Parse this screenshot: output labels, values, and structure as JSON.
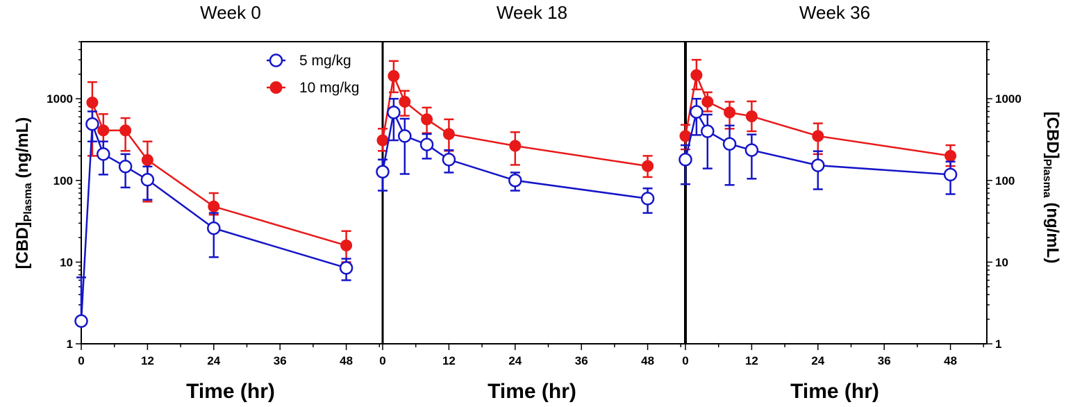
{
  "chart_data": {
    "type": "line",
    "y_scale": "log",
    "ylim": [
      1,
      5000
    ],
    "yticks": [
      1,
      10,
      100,
      1000
    ],
    "ylabel_main": "[CBD]",
    "ylabel_sub": "Plasma",
    "ylabel_units": " (ng/mL)",
    "xlabel": "Time (hr)",
    "xlim": [
      0,
      54
    ],
    "xticks": [
      0,
      12,
      24,
      36,
      48
    ],
    "legend": {
      "position": "top-left",
      "entries": [
        {
          "name": "5 mg/kg",
          "marker": "open-circle",
          "color": "#1515c8"
        },
        {
          "name": "10 mg/kg",
          "marker": "filled-circle",
          "color": "#e81919"
        }
      ]
    },
    "panels": [
      {
        "title": "Week 0",
        "series": [
          {
            "name": "5 mg/kg",
            "x": [
              0,
              2,
              4,
              8,
              12,
              24,
              48
            ],
            "y": [
              1.9,
              490,
              210,
              148,
              102,
              26,
              8.5
            ],
            "err_low": [
              1.9,
              300,
              118,
              82,
              58,
              11.5,
              6
            ],
            "err_high": [
              6.5,
              700,
              300,
              210,
              148,
              40,
              11
            ]
          },
          {
            "name": "10 mg/kg",
            "x": [
              2,
              4,
              8,
              12,
              24,
              48
            ],
            "y": [
              900,
              410,
              410,
              178,
              48,
              16
            ],
            "err_low": [
              200,
              200,
              230,
              55,
              38,
              10
            ],
            "err_high": [
              1600,
              650,
              580,
              300,
              70,
              24
            ]
          }
        ]
      },
      {
        "title": "Week 18",
        "series": [
          {
            "name": "5 mg/kg",
            "x": [
              0,
              2,
              4,
              8,
              12,
              24,
              48
            ],
            "y": [
              128,
              680,
              350,
              275,
              180,
              100,
              60
            ],
            "err_low": [
              75,
              310,
              120,
              185,
              125,
              75,
              40
            ],
            "err_high": [
              180,
              1000,
              570,
              370,
              235,
              125,
              80
            ]
          },
          {
            "name": "10 mg/kg",
            "x": [
              0,
              2,
              4,
              8,
              12,
              24,
              48
            ],
            "y": [
              310,
              1900,
              920,
              560,
              370,
              265,
              150
            ],
            "err_low": [
              230,
              1200,
              620,
              380,
              230,
              155,
              110
            ],
            "err_high": [
              430,
              2900,
              1250,
              780,
              560,
              390,
              200
            ]
          }
        ]
      },
      {
        "title": "Week 36",
        "series": [
          {
            "name": "5 mg/kg",
            "x": [
              0,
              2,
              4,
              8,
              12,
              24,
              48
            ],
            "y": [
              180,
              690,
              400,
              280,
              235,
              153,
              118
            ],
            "err_low": [
              90,
              360,
              140,
              88,
              105,
              78,
              68
            ],
            "err_high": [
              270,
              1000,
              640,
              470,
              365,
              228,
              170
            ]
          },
          {
            "name": "10 mg/kg",
            "x": [
              0,
              2,
              4,
              8,
              12,
              24,
              48
            ],
            "y": [
              350,
              1950,
              920,
              680,
              610,
              350,
              200
            ],
            "err_low": [
              240,
              1300,
              700,
              430,
              400,
              210,
              150
            ],
            "err_high": [
              480,
              3000,
              1200,
              920,
              930,
              500,
              270
            ]
          }
        ]
      }
    ]
  }
}
